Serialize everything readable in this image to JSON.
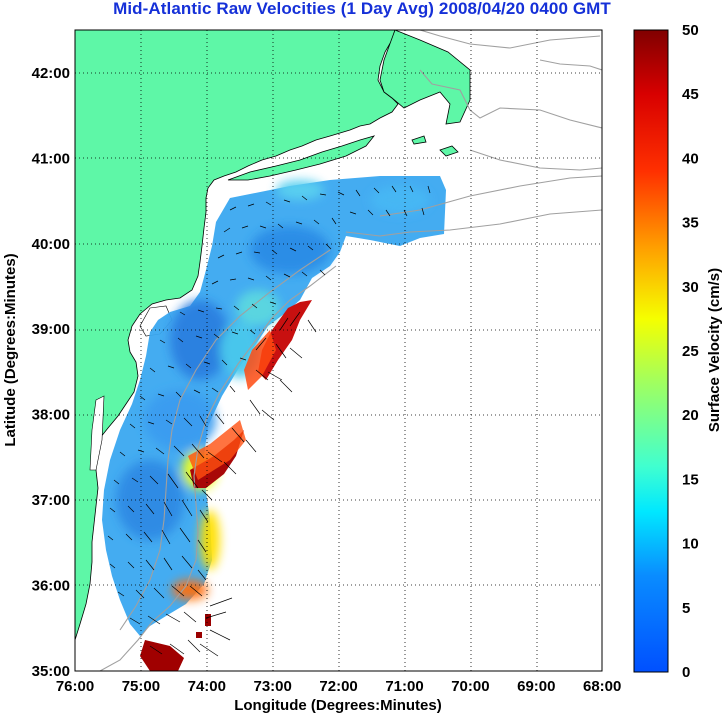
{
  "title": "Mid-Atlantic Raw Velocities (1 Day Avg) 2008/04/20 0400 GMT",
  "map": {
    "xlabel": "Longitude (Degrees:Minutes)",
    "ylabel": "Latitude (Degrees:Minutes)",
    "lon_ticks": [
      "76:00",
      "75:00",
      "74:00",
      "73:00",
      "72:00",
      "71:00",
      "70:00",
      "69:00",
      "68:00"
    ],
    "lat_ticks": [
      "42:00",
      "41:00",
      "40:00",
      "39:00",
      "38:00",
      "37:00",
      "36:00",
      "35:00"
    ],
    "lon_range": [
      -76,
      -68
    ],
    "lat_range": [
      35,
      42.5
    ]
  },
  "colorbar": {
    "label": "Surface Velocity (cm/s)",
    "tick_labels": [
      "50",
      "45",
      "40",
      "35",
      "30",
      "25",
      "20",
      "15",
      "10",
      "5",
      "0"
    ],
    "range": [
      0,
      50
    ],
    "colormap": "jet"
  },
  "colors": {
    "land": "#5ef7a7",
    "title": "#1530d8",
    "bathymetry": "#a0a0a0",
    "grid": "#000000"
  }
}
